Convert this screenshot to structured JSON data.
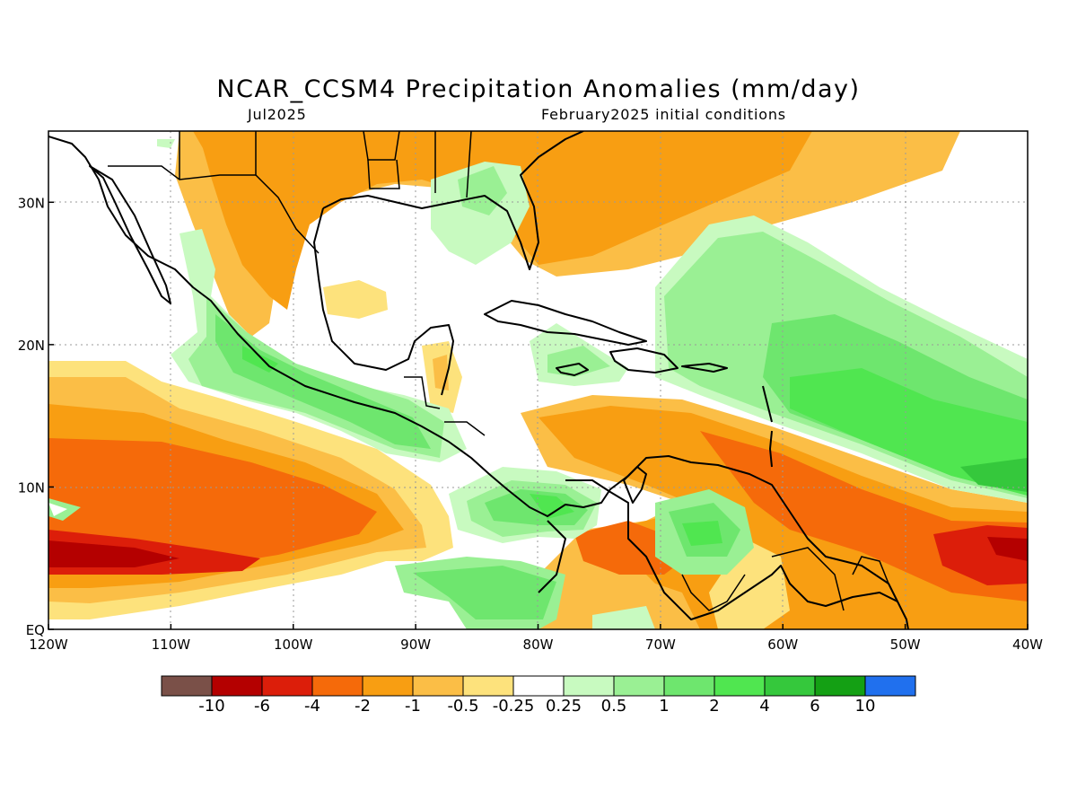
{
  "title": "NCAR_CCSM4 Precipitation Anomalies (mm/day)",
  "subtitle_left": "Jul2025",
  "subtitle_right": "February2025 initial conditions",
  "map": {
    "lon_range": [
      -120,
      -40
    ],
    "lat_range": [
      0,
      35
    ],
    "x_ticks": [
      {
        "lon": -120,
        "label": "120W"
      },
      {
        "lon": -110,
        "label": "110W"
      },
      {
        "lon": -100,
        "label": "100W"
      },
      {
        "lon": -90,
        "label": "90W"
      },
      {
        "lon": -80,
        "label": "80W"
      },
      {
        "lon": -70,
        "label": "70W"
      },
      {
        "lon": -60,
        "label": "60W"
      },
      {
        "lon": -50,
        "label": "50W"
      },
      {
        "lon": -40,
        "label": "40W"
      }
    ],
    "y_ticks": [
      {
        "lat": 0,
        "label": "EQ"
      },
      {
        "lat": 10,
        "label": "10N"
      },
      {
        "lat": 20,
        "label": "20N"
      },
      {
        "lat": 30,
        "label": "30N"
      }
    ],
    "grid": "dotted"
  },
  "colorbar": {
    "colors": [
      "#7a5048",
      "#b40000",
      "#dc1e0a",
      "#f56a0a",
      "#f89e12",
      "#fbbe46",
      "#fde27c",
      "#ffffff",
      "#c8fac0",
      "#9af094",
      "#6ee66e",
      "#50e650",
      "#35c83c",
      "#14a014",
      "#2070ee"
    ],
    "labels": [
      "-10",
      "-6",
      "-4",
      "-2",
      "-1",
      "-0.5",
      "-0.25",
      "0.25",
      "0.5",
      "1",
      "2",
      "4",
      "6",
      "10"
    ]
  }
}
